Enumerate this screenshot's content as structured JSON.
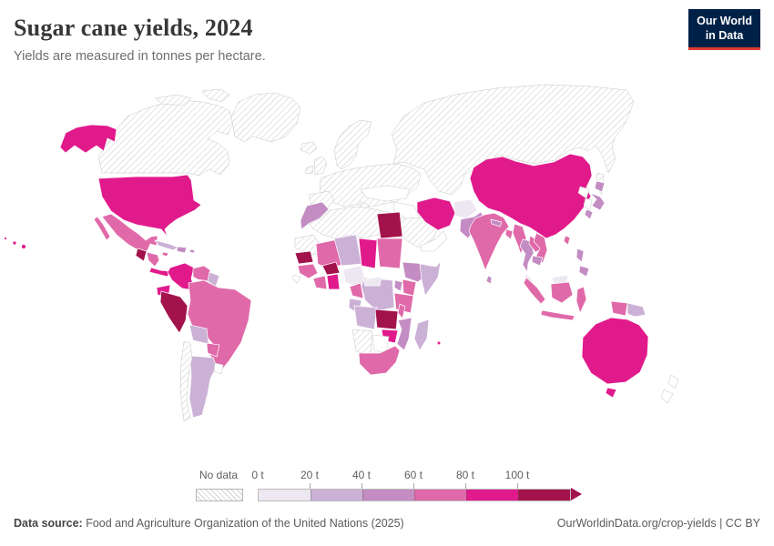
{
  "header": {
    "title": "Sugar cane yields, 2024",
    "subtitle": "Yields are measured in tonnes per hectare.",
    "logo_line1": "Our World",
    "logo_line2": "in Data",
    "logo_bg": "#002147",
    "logo_accent": "#dc3b2e"
  },
  "legend": {
    "no_data_label": "No data",
    "ticks": [
      "0 t",
      "20 t",
      "40 t",
      "60 t",
      "80 t",
      "100 t"
    ]
  },
  "footer": {
    "source_label": "Data source:",
    "source_text": " Food and Agriculture Organization of the United Nations (2025)",
    "right_text": "OurWorldinData.org/crop-yields | CC BY"
  },
  "chart_data": {
    "type": "choropleth-map",
    "title": "Sugar cane yields, 2024",
    "unit": "tonnes per hectare",
    "legend_position": "bottom",
    "bins": [
      {
        "label": "0 t",
        "range": [
          0,
          20
        ],
        "color": "#ece7f1"
      },
      {
        "label": "20 t",
        "range": [
          20,
          40
        ],
        "color": "#cbb1d6"
      },
      {
        "label": "40 t",
        "range": [
          40,
          60
        ],
        "color": "#c38cc3"
      },
      {
        "label": "60 t",
        "range": [
          60,
          80
        ],
        "color": "#e069a9"
      },
      {
        "label": "80 t",
        "range": [
          80,
          100
        ],
        "color": "#e11a8c"
      },
      {
        "label": "100 t",
        "range": [
          100,
          null
        ],
        "color": "#a2134b"
      }
    ],
    "bin_colors": {
      "0-20": "#ece7f1",
      "20-40": "#cbb1d6",
      "40-60": "#c38cc3",
      "60-80": "#e069a9",
      "80-100": "#e11a8c",
      "100+": "#a2134b"
    },
    "no_data_style": "hatched",
    "countries": {
      "alaska": "80-100",
      "united-states": "80-100",
      "hawaii": "80-100",
      "canada": "no-data",
      "canada-arctic-1": "no-data",
      "canada-arctic-2": "no-data",
      "greenland": "no-data",
      "iceland": "no-data",
      "mexico": "60-80",
      "baja-california": "60-80",
      "guatemala": "100+",
      "honduras-nicaragua": "60-80",
      "costa-rica-panama": "80-100",
      "cuba": "20-40",
      "jamaica": "60-80",
      "hispaniola": "40-60",
      "puerto-rico": "40-60",
      "colombia": "80-100",
      "venezuela": "60-80",
      "guyana-suriname": "20-40",
      "ecuador": "80-100",
      "peru": "100+",
      "brazil": "60-80",
      "bolivia": "20-40",
      "paraguay": "60-80",
      "argentina": "20-40",
      "chile": "no-data",
      "uruguay": "none",
      "scandinavia": "no-data",
      "united-kingdom": "no-data",
      "ireland": "no-data",
      "europe-mainland": "no-data",
      "iberia": "no-data",
      "italy": "no-data",
      "russia-central-asia": "no-data",
      "sakhalin": "no-data",
      "turkey": "none",
      "iraq-syria": "none",
      "saudi-arabia": "no-data",
      "yemen-oman": "none",
      "iran": "80-100",
      "afghanistan": "0-20",
      "pakistan": "40-60",
      "india": "60-80",
      "nepal": "40-60",
      "bangladesh": "60-80",
      "sri-lanka": "40-60",
      "myanmar": "60-80",
      "thailand": "40-60",
      "laos": "60-80",
      "vietnam": "60-80",
      "cambodia": "40-60",
      "malay-peninsula": "0-20",
      "borneo-malaysia": "0-20",
      "sumatra": "60-80",
      "java": "60-80",
      "borneo-indonesia": "60-80",
      "sulawesi": "60-80",
      "west-papua": "60-80",
      "papua-new-guinea": "20-40",
      "philippines-luzon": "40-60",
      "philippines-mindanao": "40-60",
      "taiwan": "60-80",
      "china": "80-100",
      "north-korea": "none",
      "south-korea": "none",
      "japan-hokkaido": "40-60",
      "japan-honshu": "40-60",
      "japan-kyushu": "40-60",
      "australia": "80-100",
      "tasmania": "80-100",
      "new-zealand-north": "none",
      "new-zealand-south": "none",
      "morocco": "40-60",
      "algeria-libya": "no-data",
      "mauritania-w-sahara": "no-data",
      "egypt": "100+",
      "senegal": "100+",
      "guinea": "60-80",
      "sierra-leone": "none",
      "mali": "60-80",
      "burkina-faso": "100+",
      "ivory-coast": "60-80",
      "ghana": "80-100",
      "nigeria": "0-20",
      "niger": "20-40",
      "chad": "80-100",
      "sudan": "60-80",
      "ethiopia": "40-60",
      "somalia": "20-40",
      "kenya": "60-80",
      "uganda": "40-60",
      "tanzania": "60-80",
      "dr-congo": "20-40",
      "cameroon": "60-80",
      "central-african-republic": "0-20",
      "gabon-congo": "20-40",
      "angola": "20-40",
      "zambia": "100+",
      "malawi": "60-80",
      "mozambique": "40-60",
      "zimbabwe": "80-100",
      "namibia": "no-data",
      "botswana": "none",
      "south-africa": "60-80",
      "madagascar": "20-40",
      "mauritius": "80-100"
    }
  }
}
